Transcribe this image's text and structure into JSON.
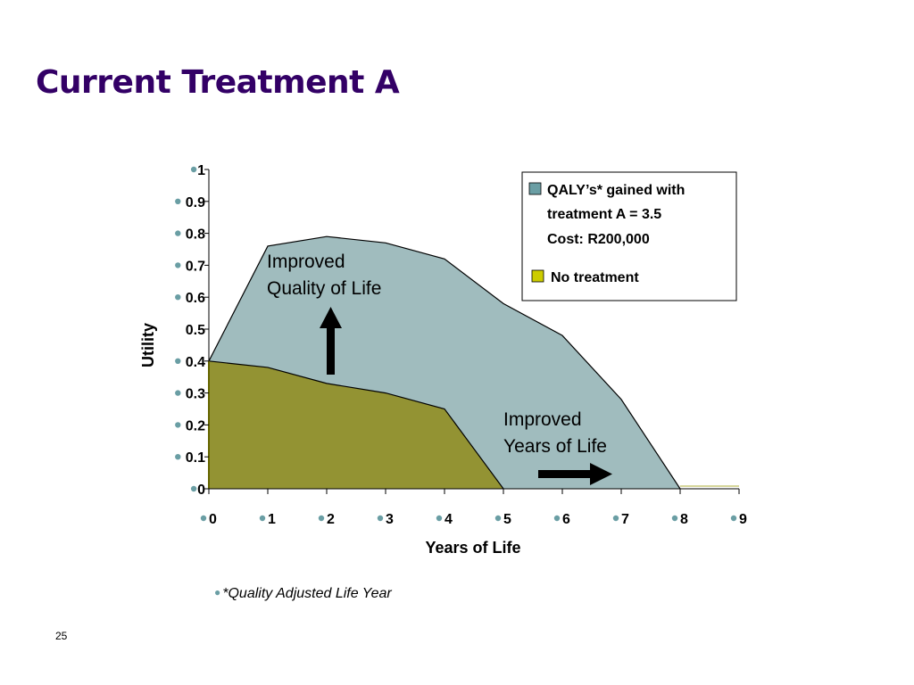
{
  "slide": {
    "title": "Current Treatment A",
    "footnote": "*Quality Adjusted Life Year",
    "page_number": "25"
  },
  "colors": {
    "treatment_fill": "#a0bcbe",
    "no_treatment_fill": "#939333",
    "legend_treatment_swatch": "#6a9ea4",
    "legend_no_treatment_swatch": "#cccc00",
    "tick_dot": "#6a9ea4",
    "title": "#330066"
  },
  "chart_data": {
    "type": "area",
    "xlabel": "Years of Life",
    "ylabel": "Utility",
    "xlim": [
      0,
      9
    ],
    "ylim": [
      0,
      1
    ],
    "x_ticks": [
      "0",
      "1",
      "2",
      "3",
      "4",
      "5",
      "6",
      "7",
      "8",
      "9"
    ],
    "y_ticks": [
      "0",
      "0.1",
      "0.2",
      "0.3",
      "0.4",
      "0.5",
      "0.6",
      "0.7",
      "0.8",
      "0.9",
      "1"
    ],
    "grid": false,
    "legend_position": "top-right",
    "series": [
      {
        "name": "QALY’s* gained with treatment A = 3.5",
        "x": [
          0,
          1,
          2,
          3,
          4,
          5,
          6,
          7,
          8
        ],
        "y": [
          0.4,
          0.76,
          0.79,
          0.77,
          0.72,
          0.58,
          0.48,
          0.28,
          0
        ]
      },
      {
        "name": "No treatment",
        "x": [
          0,
          1,
          2,
          3,
          4,
          5
        ],
        "y": [
          0.4,
          0.38,
          0.33,
          0.3,
          0.25,
          0
        ]
      }
    ],
    "legend": {
      "treatment_line1": "QALY’s* gained with",
      "treatment_line2": "treatment A = 3.5",
      "treatment_line3": "Cost: R200,000",
      "no_treatment": "No treatment"
    },
    "annotations": {
      "quality_line1": "Improved",
      "quality_line2": "Quality of Life",
      "years_line1": "Improved",
      "years_line2": "Years of Life"
    }
  }
}
